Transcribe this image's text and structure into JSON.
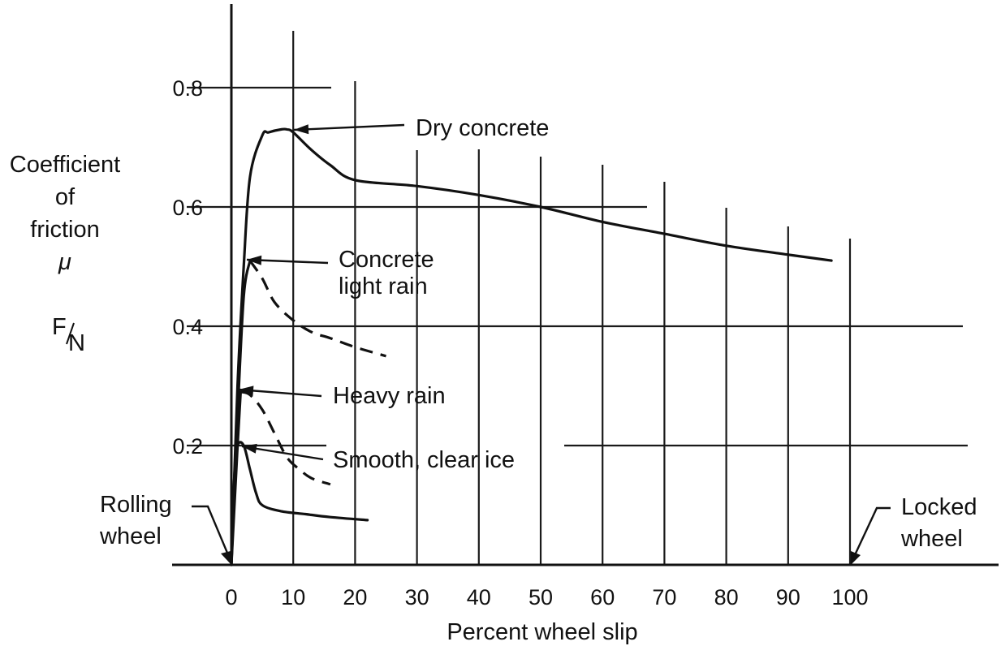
{
  "chart_data": {
    "type": "line",
    "xlabel": "Percent wheel slip",
    "ylabel_lines": [
      "Coefficient",
      "of",
      "friction",
      "μ"
    ],
    "ylabel_ratio": {
      "numerator": "F",
      "denominator": "N"
    },
    "x_ticks": [
      0,
      10,
      20,
      30,
      40,
      50,
      60,
      70,
      80,
      90,
      100
    ],
    "y_ticks": [
      0.2,
      0.4,
      0.6,
      0.8
    ],
    "xlim": [
      -10,
      127
    ],
    "ylim": [
      0,
      0.95
    ],
    "grid": true,
    "series": [
      {
        "name": "Dry concrete",
        "line_style": "solid",
        "x": [
          0,
          1,
          2,
          3,
          5,
          6,
          8,
          9,
          10,
          13,
          16,
          20,
          30,
          40,
          50,
          60,
          70,
          80,
          90,
          97
        ],
        "y": [
          0.0,
          0.3,
          0.5,
          0.65,
          0.72,
          0.725,
          0.73,
          0.73,
          0.725,
          0.695,
          0.67,
          0.645,
          0.635,
          0.62,
          0.6,
          0.575,
          0.555,
          0.535,
          0.52,
          0.51
        ]
      },
      {
        "name": "Concrete light rain",
        "line_style": "solid-then-dashed",
        "solid_until_x": 3,
        "x": [
          0,
          1,
          2,
          3,
          5,
          7,
          10,
          13,
          16,
          20,
          25
        ],
        "y": [
          0.0,
          0.25,
          0.45,
          0.51,
          0.48,
          0.44,
          0.41,
          0.39,
          0.38,
          0.365,
          0.35
        ]
      },
      {
        "name": "Heavy rain",
        "line_style": "solid-then-dashed",
        "solid_until_x": 1.5,
        "x": [
          0,
          1,
          1.5,
          3,
          5,
          7,
          9,
          11,
          13,
          16
        ],
        "y": [
          0.0,
          0.2,
          0.29,
          0.285,
          0.26,
          0.22,
          0.18,
          0.16,
          0.145,
          0.135
        ]
      },
      {
        "name": "Smooth, clear ice",
        "line_style": "solid",
        "x": [
          0,
          0.5,
          1,
          2,
          3,
          4,
          5,
          8,
          12,
          16,
          22
        ],
        "y": [
          0.0,
          0.15,
          0.2,
          0.2,
          0.16,
          0.12,
          0.1,
          0.09,
          0.085,
          0.08,
          0.075
        ]
      }
    ],
    "annotations": [
      {
        "name": "dry-concrete",
        "lines": [
          "Dry concrete"
        ]
      },
      {
        "name": "concrete-light-rain",
        "lines": [
          "Concrete",
          "light rain"
        ]
      },
      {
        "name": "heavy-rain",
        "lines": [
          "Heavy rain"
        ]
      },
      {
        "name": "smooth-clear-ice",
        "lines": [
          "Smooth, clear ice"
        ]
      },
      {
        "name": "rolling-wheel",
        "lines": [
          "Rolling",
          "wheel"
        ]
      },
      {
        "name": "locked-wheel",
        "lines": [
          "Locked",
          "wheel"
        ]
      }
    ]
  }
}
